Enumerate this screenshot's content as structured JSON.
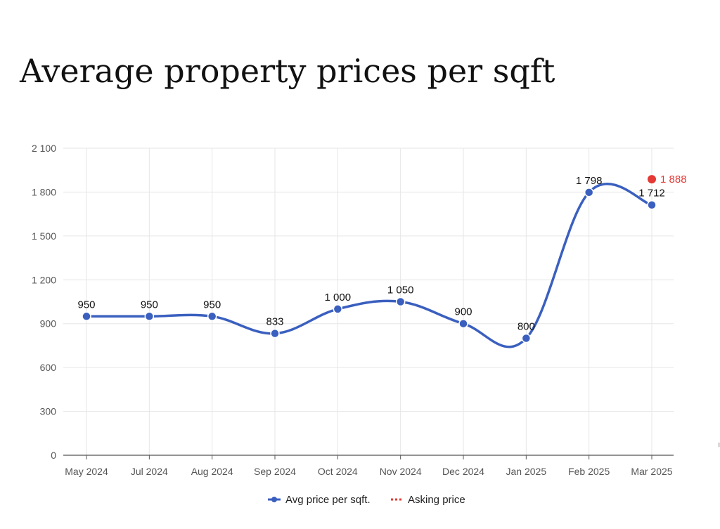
{
  "chart_data": {
    "type": "line",
    "title": "Average property prices per sqft",
    "categories": [
      "May 2024",
      "Jul 2024",
      "Aug 2024",
      "Sep 2024",
      "Oct 2024",
      "Nov 2024",
      "Dec 2024",
      "Jan 2025",
      "Feb 2025",
      "Mar 2025"
    ],
    "series": [
      {
        "name": "Avg price per sqft.",
        "color": "#3a5fbf",
        "values": [
          950,
          950,
          950,
          833,
          1000,
          1050,
          900,
          800,
          1798,
          1712
        ],
        "labels": [
          "950",
          "950",
          "950",
          "833",
          "1 000",
          "1 050",
          "900",
          "800",
          "1 798",
          "1 712"
        ]
      },
      {
        "name": "Asking price",
        "color": "#e53935",
        "points": [
          {
            "category": "Mar 2025",
            "value": 1888,
            "label": "1 888"
          }
        ]
      }
    ],
    "yticks": [
      0,
      300,
      600,
      900,
      1200,
      1500,
      1800,
      2100
    ],
    "ytick_labels": [
      "0",
      "300",
      "600",
      "900",
      "1 200",
      "1 500",
      "1 800",
      "2 100"
    ],
    "ylim": [
      0,
      2100
    ],
    "grid": true,
    "legend_position": "bottom"
  }
}
